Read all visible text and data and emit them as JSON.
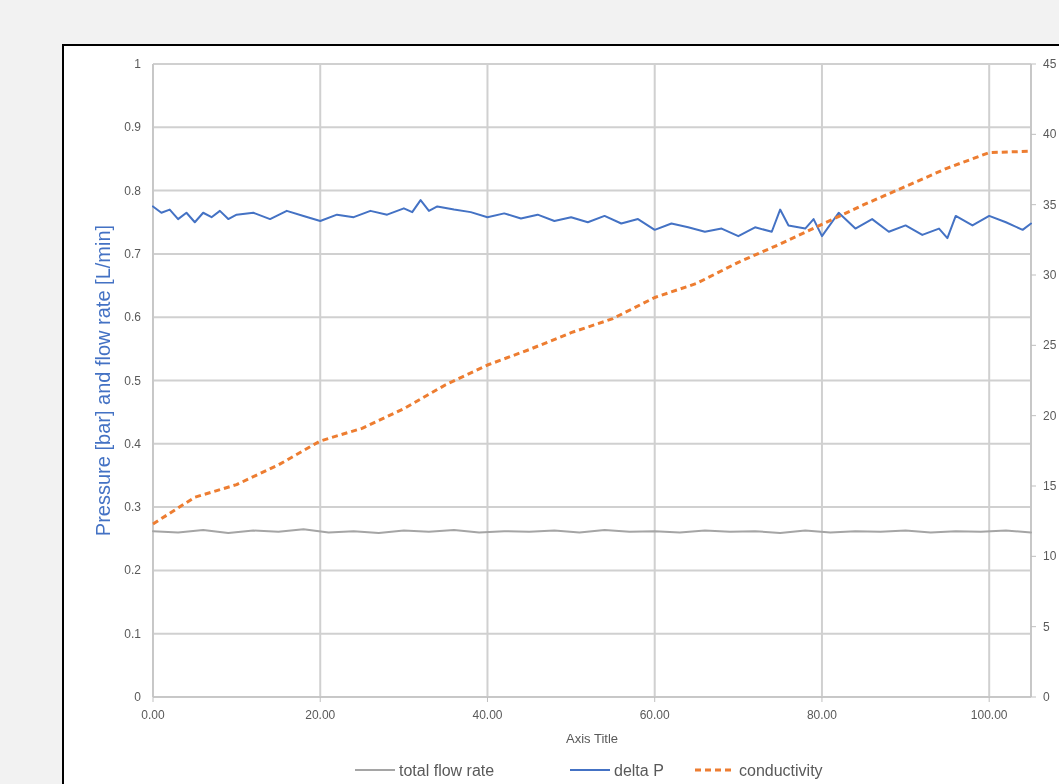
{
  "chart_data": {
    "type": "line",
    "xlabel": "Axis Title",
    "ylabel": "Pressure [bar] and flow rate [L/min]",
    "xlim": [
      0,
      105
    ],
    "xticks": [
      {
        "value": 0,
        "label": "0.00"
      },
      {
        "value": 20,
        "label": "20.00"
      },
      {
        "value": 40,
        "label": "40.00"
      },
      {
        "value": 60,
        "label": "60.00"
      },
      {
        "value": 80,
        "label": "80.00"
      },
      {
        "value": 100,
        "label": "100.00"
      }
    ],
    "ylim": [
      0,
      1
    ],
    "yticks": [
      0,
      0.1,
      0.2,
      0.3,
      0.4,
      0.5,
      0.6,
      0.7,
      0.8,
      0.9,
      1
    ],
    "y2lim": [
      0,
      45
    ],
    "y2ticks": [
      0,
      5,
      10,
      15,
      20,
      25,
      30,
      35,
      40,
      45
    ],
    "grid": true,
    "legend": "bottom",
    "marker": "none",
    "series": [
      {
        "name": "total flow rate",
        "color": "#a5a5a5",
        "line_style": "solid",
        "x": [
          0,
          3,
          6,
          9,
          12,
          15,
          18,
          21,
          24,
          27,
          30,
          33,
          36,
          39,
          42,
          45,
          48,
          51,
          54,
          57,
          60,
          63,
          66,
          69,
          72,
          75,
          78,
          81,
          84,
          87,
          90,
          93,
          96,
          99,
          102,
          105
        ],
        "values": [
          0.262,
          0.26,
          0.264,
          0.259,
          0.263,
          0.261,
          0.265,
          0.26,
          0.262,
          0.259,
          0.263,
          0.261,
          0.264,
          0.26,
          0.262,
          0.261,
          0.263,
          0.26,
          0.264,
          0.261,
          0.262,
          0.26,
          0.263,
          0.261,
          0.262,
          0.259,
          0.263,
          0.26,
          0.262,
          0.261,
          0.263,
          0.26,
          0.262,
          0.261,
          0.263,
          0.26
        ]
      },
      {
        "name": "delta P",
        "color": "#4472c4",
        "line_style": "solid",
        "x": [
          0,
          1,
          2,
          3,
          4,
          5,
          6,
          7,
          8,
          9,
          10,
          12,
          14,
          16,
          18,
          20,
          22,
          24,
          26,
          28,
          30,
          31,
          32,
          33,
          34,
          36,
          38,
          40,
          42,
          44,
          46,
          48,
          50,
          52,
          54,
          56,
          58,
          60,
          62,
          64,
          66,
          68,
          70,
          72,
          74,
          75,
          76,
          78,
          79,
          80,
          82,
          84,
          86,
          88,
          90,
          92,
          94,
          95,
          96,
          98,
          100,
          102,
          104,
          105
        ],
        "values": [
          0.775,
          0.765,
          0.77,
          0.755,
          0.765,
          0.75,
          0.765,
          0.758,
          0.768,
          0.755,
          0.762,
          0.765,
          0.755,
          0.768,
          0.76,
          0.752,
          0.762,
          0.758,
          0.768,
          0.762,
          0.772,
          0.766,
          0.785,
          0.768,
          0.775,
          0.77,
          0.766,
          0.758,
          0.764,
          0.756,
          0.762,
          0.752,
          0.758,
          0.75,
          0.76,
          0.748,
          0.755,
          0.738,
          0.748,
          0.742,
          0.735,
          0.74,
          0.728,
          0.742,
          0.735,
          0.77,
          0.745,
          0.74,
          0.755,
          0.728,
          0.765,
          0.74,
          0.755,
          0.735,
          0.745,
          0.73,
          0.74,
          0.725,
          0.76,
          0.745,
          0.76,
          0.75,
          0.738,
          0.748
        ]
      },
      {
        "name": "conductivity",
        "color": "#ed7d31",
        "line_style": "dashed",
        "axis": "y2",
        "x": [
          0,
          5,
          10,
          15,
          20,
          25,
          30,
          35,
          40,
          45,
          50,
          55,
          60,
          65,
          70,
          75,
          80,
          85,
          90,
          95,
          100,
          104.9
        ],
        "values": [
          12.3,
          14.2,
          15.1,
          16.5,
          18.2,
          19.1,
          20.5,
          22.2,
          23.6,
          24.7,
          25.9,
          26.9,
          28.4,
          29.4,
          30.9,
          32.2,
          33.6,
          35.0,
          36.3,
          37.6,
          38.7,
          38.8
        ]
      }
    ]
  }
}
